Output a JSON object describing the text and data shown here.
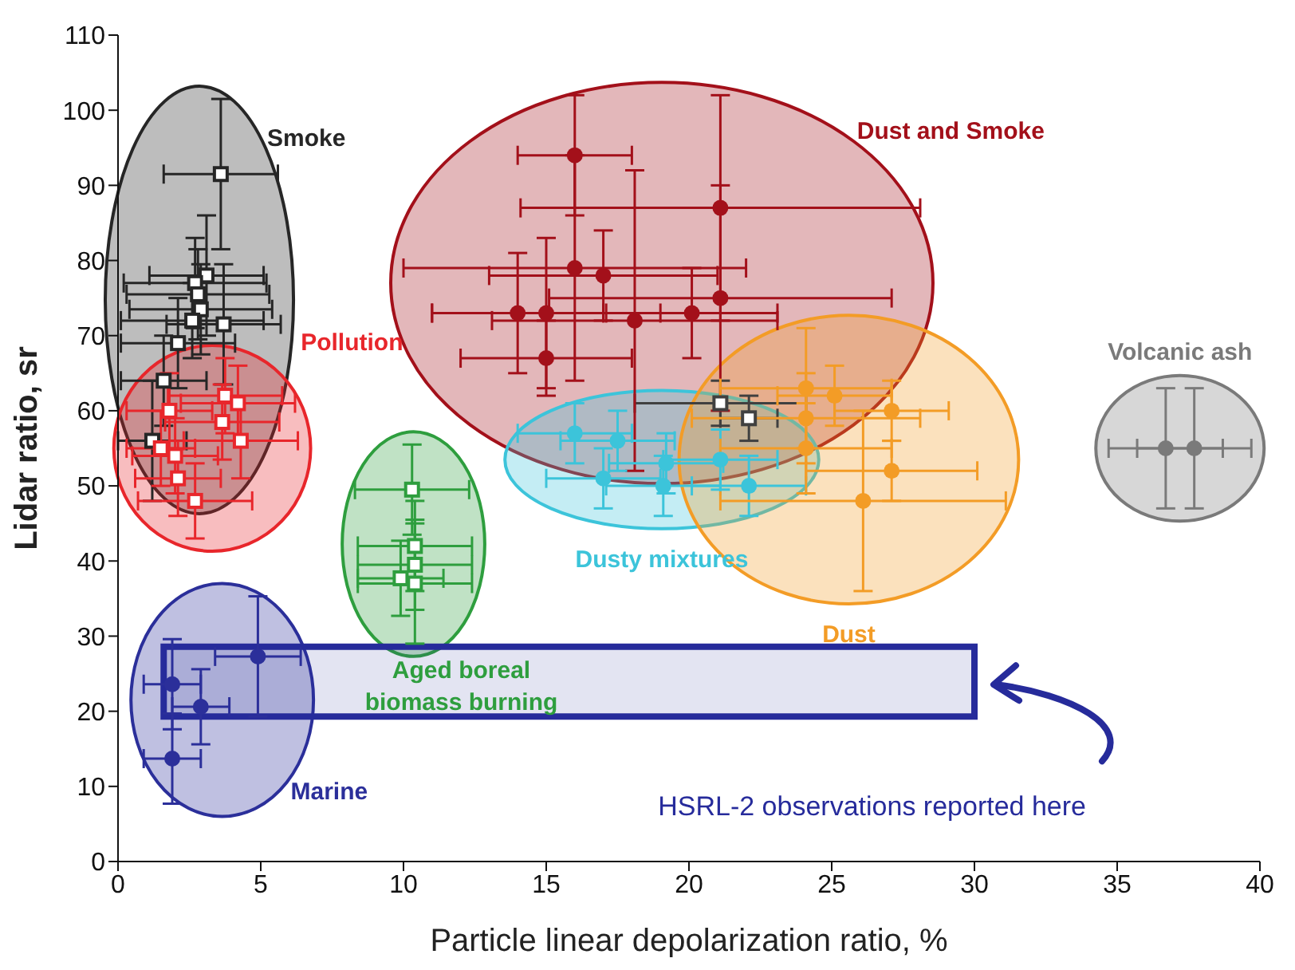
{
  "chart_data": {
    "type": "scatter",
    "xlabel": "Particle linear depolarization ratio, %",
    "ylabel": "Lidar ratio, sr",
    "xlim": [
      0,
      40
    ],
    "xticks": [
      0,
      5,
      10,
      15,
      20,
      25,
      30,
      35,
      40
    ],
    "ylim": [
      0,
      110
    ],
    "yticks": [
      0,
      10,
      20,
      30,
      40,
      50,
      60,
      70,
      80,
      90,
      100,
      110
    ],
    "series": [
      {
        "name": "Smoke",
        "color": "#262626",
        "marker": "square",
        "x": [
          3.6,
          3.1,
          2.7,
          2.8,
          2.9,
          2.6,
          3.7,
          2.1,
          1.6,
          1.2
        ],
        "values": [
          91.5,
          78,
          77,
          75.5,
          73.5,
          72,
          71.5,
          69,
          64,
          56
        ],
        "errors": [
          10,
          8,
          6,
          6,
          6,
          5,
          8,
          6,
          6,
          8
        ],
        "xerrors": [
          2,
          2,
          2.5,
          2.5,
          2.5,
          2.5,
          2,
          2,
          1.5,
          1.2
        ]
      },
      {
        "color": "#404040",
        "marker": "square",
        "x": [
          21.1,
          22.1
        ],
        "values": [
          61,
          59
        ],
        "errors": [
          3,
          3
        ],
        "xerrors": [
          3,
          1
        ]
      },
      {
        "name": "Pollution",
        "color": "#e8262b",
        "marker": "square",
        "x": [
          3.75,
          4.2,
          3.65,
          4.3,
          2.0,
          2.1,
          2.7,
          1.5,
          1.8
        ],
        "values": [
          62,
          61,
          58.5,
          56,
          54,
          51,
          48,
          55,
          60
        ],
        "errors": [
          5,
          5,
          5,
          5,
          5,
          5,
          5,
          5,
          5
        ],
        "xerrors": [
          2,
          2,
          2,
          2,
          1.5,
          1.5,
          2,
          1.2,
          1.5
        ]
      },
      {
        "name": "Aged boreal biomass burning",
        "color": "#2e9e3e",
        "marker": "square",
        "x": [
          10.3,
          10.4,
          10.4,
          9.9,
          10.4
        ],
        "values": [
          49.5,
          42,
          39.5,
          37.7,
          37
        ],
        "errors": [
          6,
          6,
          6,
          5,
          8
        ],
        "xerrors": [
          2,
          2,
          2,
          1.5,
          2
        ]
      },
      {
        "name": "Dust and Smoke",
        "color": "#a3101a",
        "marker": "circle",
        "x": [
          16,
          21.1,
          16,
          17,
          21.1,
          14,
          15,
          18.1,
          20.1,
          15
        ],
        "values": [
          94,
          87,
          79,
          78,
          75,
          73,
          73,
          72,
          73,
          67
        ],
        "errors": [
          8,
          15,
          15,
          6,
          15,
          8,
          10,
          20,
          6,
          5
        ],
        "xerrors": [
          2,
          7,
          6,
          4,
          6,
          3,
          4,
          5,
          3,
          3
        ]
      },
      {
        "name": "Dusty mixtures",
        "color": "#3cc4da",
        "marker": "circle",
        "x": [
          16,
          17.5,
          17,
          19.1,
          19.2,
          21.1,
          22.1
        ],
        "values": [
          57,
          56,
          51,
          50,
          53,
          53.5,
          50
        ],
        "errors": [
          4,
          4,
          4,
          4,
          4,
          4,
          4
        ],
        "xerrors": [
          2,
          2,
          2,
          2,
          2,
          2,
          2
        ]
      },
      {
        "name": "Dust",
        "color": "#f39c26",
        "marker": "circle",
        "x": [
          24.1,
          25.1,
          24.1,
          24.1,
          27.1,
          27.1,
          26.1
        ],
        "values": [
          63,
          62,
          59,
          55,
          60,
          52,
          48
        ],
        "errors": [
          8,
          4,
          6,
          6,
          4,
          4,
          12
        ],
        "xerrors": [
          3,
          2,
          4,
          3,
          2,
          3,
          5
        ]
      },
      {
        "name": "Volcanic ash",
        "color": "#7a7a7a",
        "marker": "circle",
        "x": [
          36.7,
          37.7
        ],
        "values": [
          55,
          55
        ],
        "errors": [
          8,
          8
        ],
        "xerrors": [
          2,
          2
        ]
      },
      {
        "name": "Marine",
        "color": "#2b2f9a",
        "marker": "circle",
        "x": [
          1.9,
          2.9,
          4.9,
          1.9
        ],
        "values": [
          23.6,
          20.6,
          27.3,
          13.7
        ],
        "errors": [
          6,
          5,
          8,
          6
        ],
        "xerrors": [
          1,
          1,
          1.5,
          1
        ]
      }
    ],
    "bands": [
      {
        "axis": "y",
        "from": 19.3,
        "to": 28.6,
        "color": "#262b9b"
      }
    ],
    "annotations": [
      "HSRL-2 observations reported here"
    ]
  }
}
